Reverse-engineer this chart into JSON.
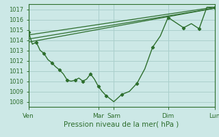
{
  "title": "Pression niveau de la mer( hPa )",
  "bg_color": "#cce8e6",
  "grid_color": "#aacfcc",
  "line_color": "#2d6e2d",
  "ylim": [
    1007.5,
    1017.5
  ],
  "yticks": [
    1008,
    1009,
    1010,
    1011,
    1012,
    1013,
    1014,
    1015,
    1016,
    1017
  ],
  "xtick_labels": [
    "Ven",
    "Mar",
    "Sam",
    "Dim",
    "Lun"
  ],
  "xtick_positions": [
    0,
    9,
    11,
    18,
    24
  ],
  "total_x": 24,
  "main_x": [
    0,
    0.5,
    1,
    1.5,
    2,
    2.5,
    3,
    3.5,
    4,
    4.5,
    5,
    5.5,
    6,
    6.5,
    7,
    7.5,
    8,
    8.5,
    9,
    9.5,
    10,
    11,
    12,
    13,
    14,
    15,
    16,
    17,
    18,
    19,
    20,
    21,
    22,
    23,
    24
  ],
  "main_y": [
    1014.8,
    1013.6,
    1013.8,
    1013.0,
    1012.7,
    1012.1,
    1011.8,
    1011.4,
    1011.1,
    1010.7,
    1010.1,
    1010.0,
    1010.1,
    1010.3,
    1010.0,
    1010.2,
    1010.7,
    1010.2,
    1009.5,
    1009.0,
    1008.6,
    1008.0,
    1008.7,
    1009.0,
    1009.8,
    1011.2,
    1013.3,
    1014.4,
    1016.2,
    1015.7,
    1015.2,
    1015.6,
    1015.1,
    1017.2,
    1017.2
  ],
  "trend1_x": [
    0,
    24
  ],
  "trend1_y": [
    1013.8,
    1017.1
  ],
  "trend2_x": [
    0,
    24
  ],
  "trend2_y": [
    1014.1,
    1017.1
  ],
  "trend3_x": [
    0,
    24
  ],
  "trend3_y": [
    1014.5,
    1017.2
  ]
}
